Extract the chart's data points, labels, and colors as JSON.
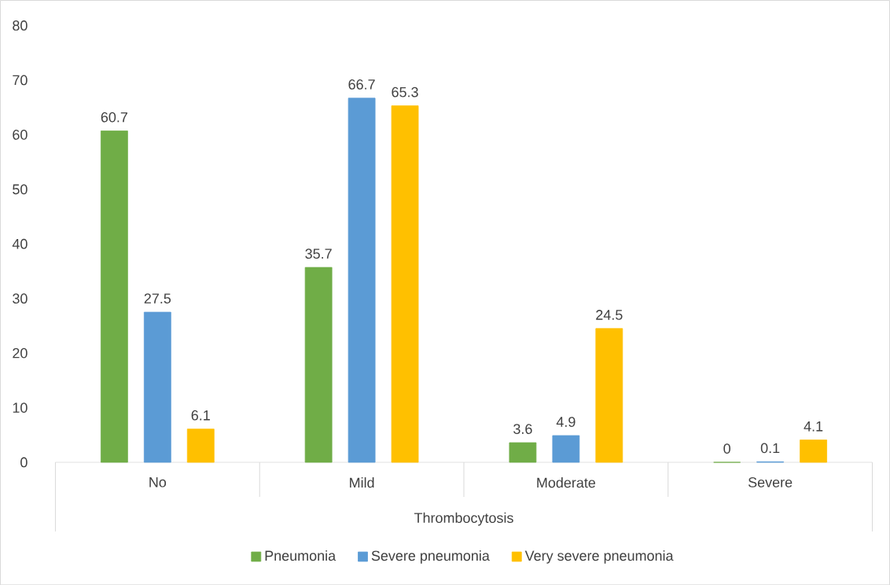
{
  "chart_data": {
    "type": "bar",
    "xlabel": "Thrombocytosis",
    "categories": [
      "No",
      "Mild",
      "Moderate",
      "Severe"
    ],
    "series": [
      {
        "name": "Pneumonia",
        "color": "#70ad47",
        "values": [
          60.7,
          35.7,
          3.6,
          0
        ]
      },
      {
        "name": "Severe pneumonia",
        "color": "#5b9bd5",
        "values": [
          27.5,
          66.7,
          4.9,
          0.1
        ]
      },
      {
        "name": "Very severe pneumonia",
        "color": "#ffc000",
        "values": [
          6.1,
          65.3,
          24.5,
          4.1
        ]
      }
    ],
    "ylim": [
      0,
      80
    ],
    "yticks": [
      0,
      10,
      20,
      30,
      40,
      50,
      60,
      70,
      80
    ],
    "data_labels": true,
    "legend": "bottom",
    "grid": false
  }
}
